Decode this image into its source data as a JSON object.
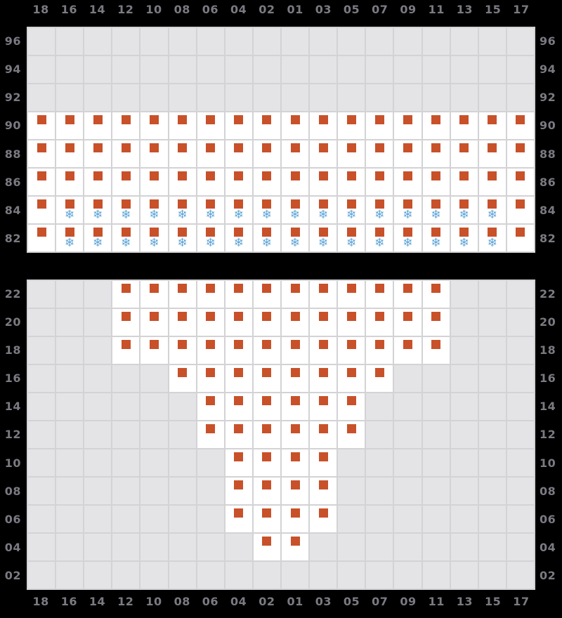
{
  "chart_data": {
    "type": "heatmap",
    "layout": {
      "panel_count": 2,
      "columns": 18,
      "grid_on": true,
      "axis_positions": "column labels top and bottom, row labels left and right"
    },
    "col_labels": [
      "18",
      "16",
      "14",
      "12",
      "10",
      "08",
      "06",
      "04",
      "02",
      "01",
      "03",
      "05",
      "07",
      "09",
      "11",
      "13",
      "15",
      "17"
    ],
    "panels": [
      {
        "name": "top-panel",
        "row_labels": [
          "96",
          "94",
          "92",
          "90",
          "88",
          "86",
          "84",
          "82"
        ],
        "rows": [
          "..................",
          "..................",
          "..................",
          "ssssssssssssssssss",
          "ssssssssssssssssss",
          "ssssssssssssssssss",
          "sffffffffffffffffs",
          "sffffffffffffffffs"
        ]
      },
      {
        "name": "bottom-panel",
        "row_labels": [
          "22",
          "20",
          "18",
          "16",
          "14",
          "12",
          "10",
          "08",
          "06",
          "04",
          "02"
        ],
        "rows": [
          "...ssssssssssss...",
          "...ssssssssssss...",
          "...ssssssssssss...",
          ".....ssssssss.....",
          "......ssssss......",
          "......ssssss......",
          ".......ssss.......",
          ".......ssss.......",
          ".......ssss.......",
          "........ss........",
          ".................."
        ]
      }
    ],
    "cell_codes": {
      "s": "square-marker",
      "f": "square-marker+snowflake",
      ".": "empty"
    },
    "icons": {
      "snowflake": "❄"
    },
    "colors": {
      "marker": "#c8512a",
      "snowflake": "#5da5d8",
      "cell_empty": "#e4e4e6",
      "cell_active": "#ffffff",
      "gridline": "#d3d3d6",
      "axis_label": "#7a7a82",
      "background": "#000000"
    }
  }
}
